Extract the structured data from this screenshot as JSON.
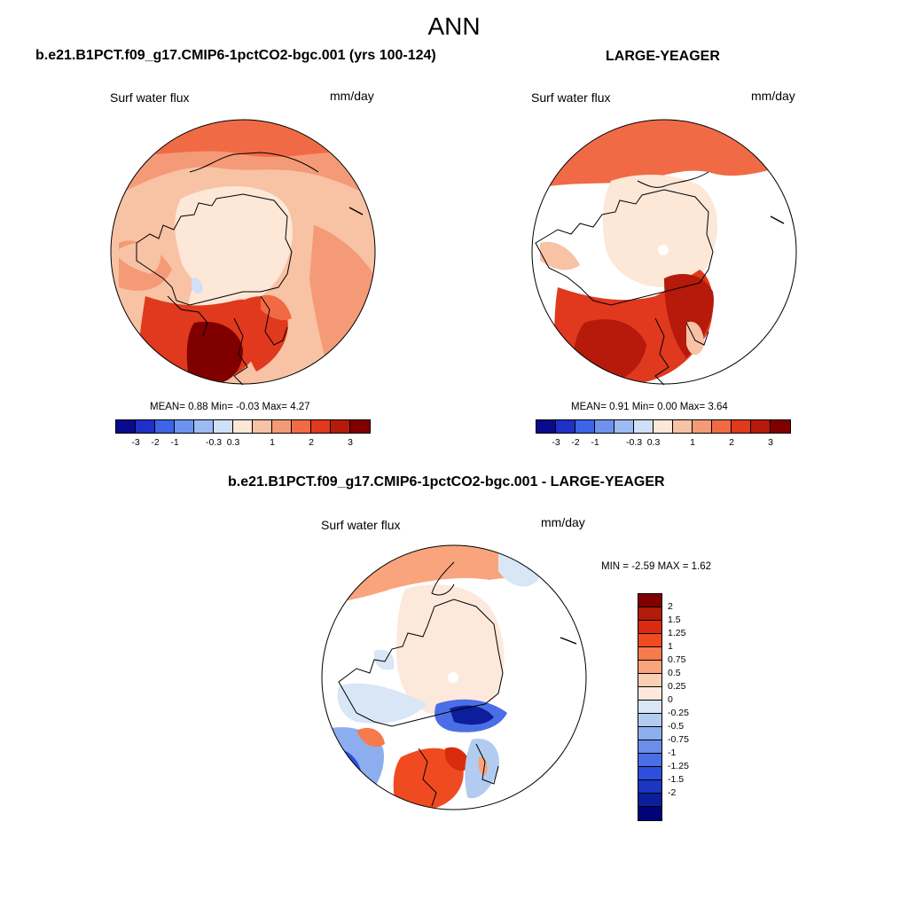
{
  "page_title": "ANN",
  "panel_left": {
    "case_title": "b.e21.B1PCT.f09_g17.CMIP6-1pctCO2-bgc.001 (yrs 100-124)",
    "var_label": "Surf water flux",
    "units": "mm/day",
    "stats": "MEAN=   0.88  Min=  -0.03  Max=   4.27"
  },
  "panel_right": {
    "case_title": "LARGE-YEAGER",
    "var_label": "Surf water flux",
    "units": "mm/day",
    "stats": "MEAN=   0.91  Min=   0.00  Max=   3.64"
  },
  "panel_diff": {
    "case_title": "b.e21.B1PCT.f09_g17.CMIP6-1pctCO2-bgc.001 - LARGE-YEAGER",
    "var_label": "Surf water flux",
    "units": "mm/day",
    "stats": "MIN =  -2.59 MAX =   1.62"
  },
  "colorbar_top": {
    "colors": [
      "#0a0a8c",
      "#1f2fc8",
      "#3d63e6",
      "#6e93ef",
      "#9dbbf3",
      "#cfe0f7",
      "#fde7d7",
      "#f8c2a4",
      "#f59a77",
      "#f06b45",
      "#e0391d",
      "#b51a0a",
      "#800000"
    ],
    "tick_labels": [
      "-3",
      "-2",
      "-1",
      "-0.3",
      "0.3",
      "1",
      "2",
      "3"
    ]
  },
  "colorbar_diff": {
    "colors": [
      "#800000",
      "#b21a0a",
      "#d92b10",
      "#f04a20",
      "#f67a4c",
      "#f9a47d",
      "#fbcfb4",
      "#fde9dc",
      "#d8e6f6",
      "#b2ccf1",
      "#8daeee",
      "#6a8eea",
      "#4a6ee6",
      "#2d4fdc",
      "#1c36c2",
      "#0d1e9a",
      "#02037a"
    ],
    "tick_labels": [
      "2",
      "1.5",
      "1.25",
      "1",
      "0.75",
      "0.5",
      "0.25",
      "0",
      "-0.25",
      "-0.5",
      "-0.75",
      "-1",
      "-1.25",
      "-1.5",
      "-2"
    ]
  }
}
